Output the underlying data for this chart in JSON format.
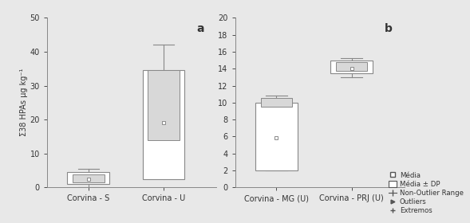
{
  "subplot_a": {
    "label": "a",
    "categories": [
      "Corvina - S",
      "Corvina - U"
    ],
    "box1": {
      "q1": 1.0,
      "q3": 4.5,
      "median": 4.5,
      "mean": 2.5,
      "mean_dp_low": 1.5,
      "mean_dp_high": 3.8,
      "whisker_low": 0.0,
      "whisker_high": 5.5
    },
    "box2": {
      "q1": 2.5,
      "q3": 34.5,
      "median": 34.5,
      "mean": 19.0,
      "mean_dp_low": 14.0,
      "mean_dp_high": 34.5,
      "whisker_low": 2.8,
      "whisker_high": 42.0
    },
    "ylim": [
      0,
      50
    ],
    "yticks": [
      0,
      10,
      20,
      30,
      40,
      50
    ],
    "ylabel": "Σ38 HPAs µg kg⁻¹"
  },
  "subplot_b": {
    "label": "b",
    "categories": [
      "Corvina - MG (U)",
      "Corvina - PRJ (U)"
    ],
    "box1": {
      "q1": 2.0,
      "q3": 10.0,
      "median": 10.0,
      "mean": 5.8,
      "mean_dp_low": 9.5,
      "mean_dp_high": 10.5,
      "whisker_low": 2.0,
      "whisker_high": 10.8
    },
    "box2": {
      "q1": 13.5,
      "q3": 15.0,
      "median": 14.5,
      "mean": 14.0,
      "mean_dp_low": 13.7,
      "mean_dp_high": 14.8,
      "whisker_low": 13.0,
      "whisker_high": 15.2
    },
    "ylim": [
      0,
      20
    ],
    "yticks": [
      0,
      2,
      4,
      6,
      8,
      10,
      12,
      14,
      16,
      18,
      20
    ]
  },
  "legend": {
    "media": "Média",
    "media_dp": "Média ± DP",
    "non_outlier": "Non-Outlier Range",
    "outliers": "Outliers",
    "extremos": "Extremos"
  },
  "box_facecolor": "white",
  "box_edge_color": "#888888",
  "inner_box_facecolor": "#d8d8d8",
  "inner_box_edge_color": "#888888",
  "whisker_color": "#888888",
  "fig_bg": "#e8e8e8",
  "axes_bg": "#e8e8e8"
}
